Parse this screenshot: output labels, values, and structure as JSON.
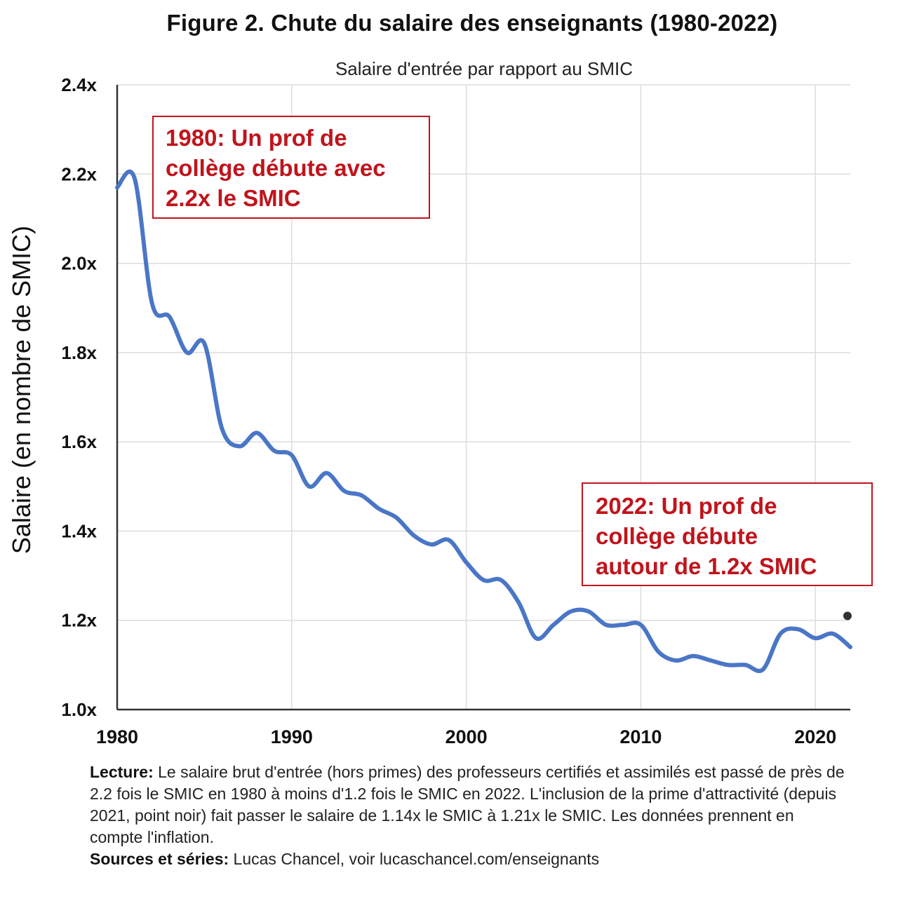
{
  "title": "Figure 2. Chute du salaire des enseignants (1980-2022)",
  "chart_data": {
    "type": "line",
    "subtitle": "Salaire d'entrée par rapport au SMIC",
    "ylabel": "Salaire (en nombre de SMIC)",
    "xlabel": "",
    "xlim": [
      1980,
      2022
    ],
    "ylim": [
      1.0,
      2.4
    ],
    "x_ticks": [
      1980,
      1990,
      2000,
      2010,
      2020
    ],
    "x_tick_labels": [
      "1980",
      "1990",
      "2000",
      "2010",
      "2020"
    ],
    "y_ticks": [
      1.0,
      1.2,
      1.4,
      1.6,
      1.8,
      2.0,
      2.2,
      2.4
    ],
    "y_tick_labels": [
      "1.0x",
      "1.2x",
      "1.4x",
      "1.6x",
      "1.8x",
      "2.0x",
      "2.2x",
      "2.4x"
    ],
    "grid": true,
    "line_color": "#4a76c6",
    "series": [
      {
        "x": [
          1980,
          1981,
          1982,
          1983,
          1984,
          1985,
          1986,
          1987,
          1988,
          1989,
          1990,
          1991,
          1992,
          1993,
          1994,
          1995,
          1996,
          1997,
          1998,
          1999,
          2000,
          2001,
          2002,
          2003,
          2004,
          2005,
          2006,
          2007,
          2008,
          2009,
          2010,
          2011,
          2012,
          2013,
          2014,
          2015,
          2016,
          2017,
          2018,
          2019,
          2020,
          2021,
          2022
        ],
        "values": [
          2.17,
          2.19,
          1.91,
          1.88,
          1.8,
          1.82,
          1.63,
          1.59,
          1.62,
          1.58,
          1.57,
          1.5,
          1.53,
          1.49,
          1.48,
          1.45,
          1.43,
          1.39,
          1.37,
          1.38,
          1.33,
          1.29,
          1.29,
          1.24,
          1.16,
          1.19,
          1.22,
          1.22,
          1.19,
          1.19,
          1.19,
          1.13,
          1.11,
          1.12,
          1.11,
          1.1,
          1.1,
          1.09,
          1.17,
          1.18,
          1.16,
          1.17,
          1.14
        ]
      }
    ],
    "extra_point": {
      "x": 2022,
      "value": 1.21,
      "color": "#333333"
    },
    "annotations": [
      {
        "lines": [
          "1980: Un prof de",
          "collège débute avec",
          "2.2x le SMIC"
        ],
        "color": "#c0141c"
      },
      {
        "lines": [
          "2022: Un prof de",
          "collège débute",
          "autour de 1.2x SMIC"
        ],
        "color": "#c0141c"
      }
    ]
  },
  "caption": {
    "lecture_label": "Lecture:",
    "lecture_text": " Le salaire brut d'entrée (hors primes) des professeurs certifiés et assimilés est passé de près de 2.2 fois le SMIC en 1980 à moins d'1.2 fois le SMIC en 2022. L'inclusion de la prime d'attractivité (depuis 2021, point noir) fait passer le salaire de 1.14x le SMIC à 1.21x le SMIC. Les données prennent en compte l'inflation.",
    "sources_label": "Sources et séries:",
    "sources_text": " Lucas Chancel, voir lucaschancel.com/enseignants"
  }
}
